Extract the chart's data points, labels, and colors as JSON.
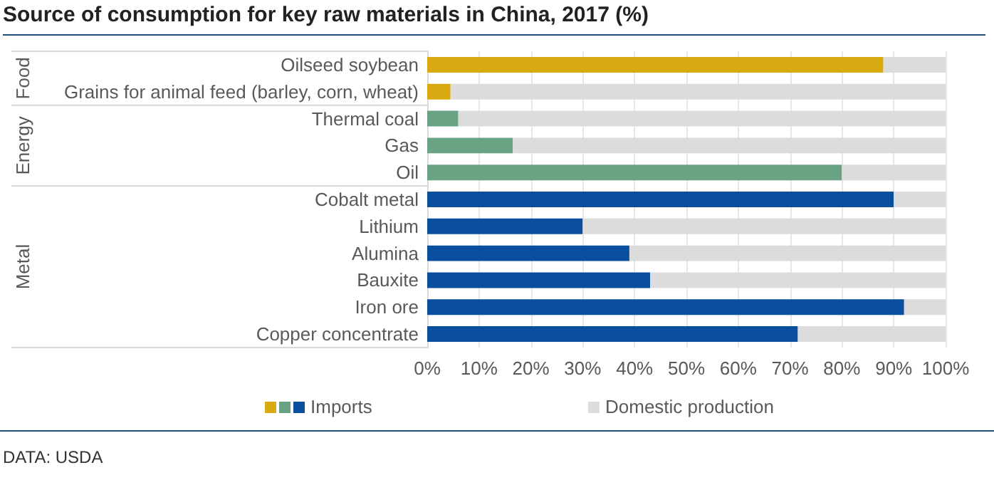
{
  "chart_data": {
    "type": "bar",
    "title": "Source of consumption for key raw materials in China, 2017 (%)",
    "orientation": "horizontal",
    "stacked": true,
    "grid": "x",
    "legend": "bottom",
    "categories": [
      "Oilseed soybean",
      "Grains for animal feed (barley, corn, wheat)",
      "Thermal coal",
      "Gas",
      "Oil",
      "Cobalt metal",
      "Lithium",
      "Alumina",
      "Bauxite",
      "Iron ore",
      "Copper concentrate"
    ],
    "series": [
      {
        "name": "Imports",
        "colors": [
          "#d9a912",
          "#d9a912",
          "#6aa384",
          "#6aa384",
          "#6aa384",
          "#0a4f9e",
          "#0a4f9e",
          "#0a4f9e",
          "#0a4f9e",
          "#0a4f9e",
          "#0a4f9e"
        ],
        "values": [
          88,
          4.5,
          6,
          16.5,
          80,
          90,
          30,
          39,
          43,
          92,
          71.5
        ]
      },
      {
        "name": "Domestic production",
        "color": "#dcdcdc",
        "values": [
          12,
          95.5,
          94,
          83.5,
          20,
          10,
          70,
          61,
          57,
          8,
          28.5
        ]
      }
    ],
    "xlim": [
      0,
      100
    ],
    "xticks": [
      {
        "value": 0,
        "label": "0%"
      },
      {
        "value": 10,
        "label": "10%"
      },
      {
        "value": 20,
        "label": "20%"
      },
      {
        "value": 30,
        "label": "30%"
      },
      {
        "value": 40,
        "label": "40%"
      },
      {
        "value": 50,
        "label": "50%"
      },
      {
        "value": 60,
        "label": "60%"
      },
      {
        "value": 70,
        "label": "70%"
      },
      {
        "value": 80,
        "label": "80%"
      },
      {
        "value": 90,
        "label": "90%"
      },
      {
        "value": 100,
        "label": "100%"
      }
    ],
    "annotations": [
      "Food",
      "Energy",
      "Metal",
      "DATA: USDA"
    ]
  }
}
